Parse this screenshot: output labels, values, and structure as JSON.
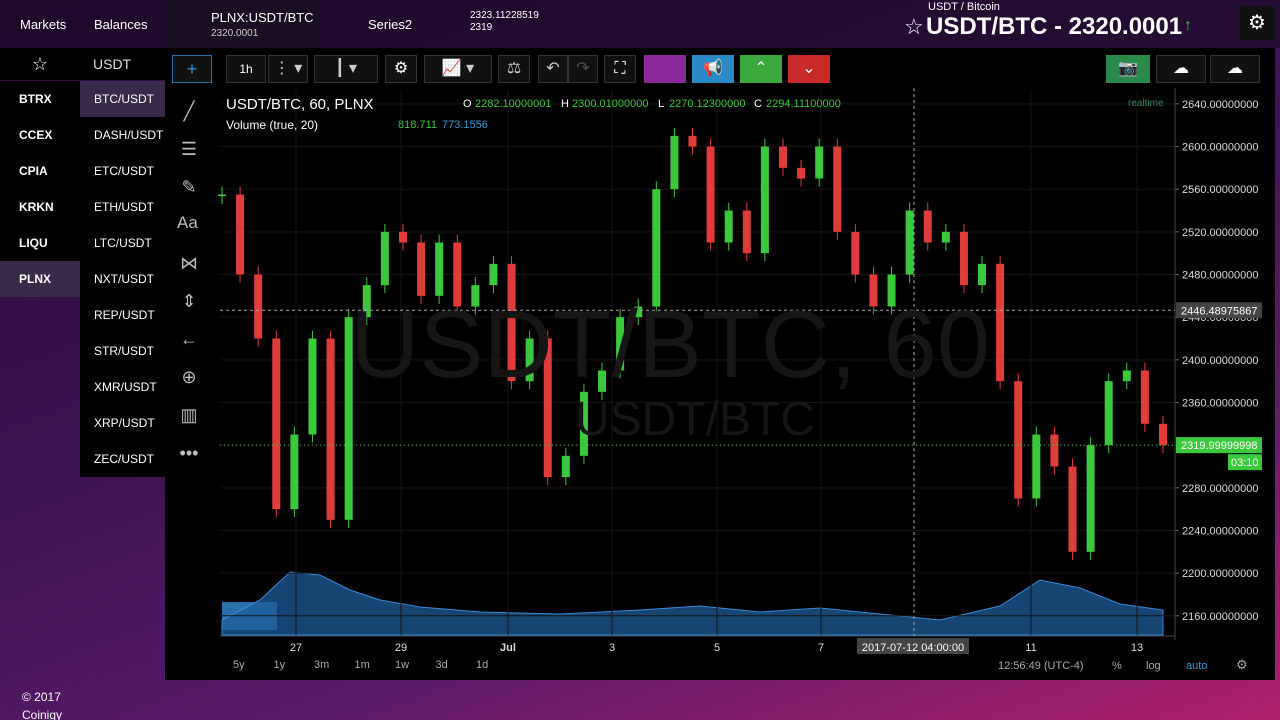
{
  "nav": {
    "markets": "Markets",
    "balances": "Balances",
    "tab_pair": "PLNX:USDT/BTC",
    "tab_price": "2320.0001",
    "series": "Series2",
    "mini_top": "2323.11228519",
    "mini_bottom": "2319",
    "pair_name": "USDT / Bitcoin",
    "headline": "USDT/BTC - 2320.0001"
  },
  "sidebar": {
    "filter": "USDT",
    "exchanges": [
      "BTRX",
      "CCEX",
      "CPIA",
      "KRKN",
      "LIQU",
      "PLNX"
    ],
    "markets": [
      "BTC/USDT",
      "DASH/USDT",
      "ETC/USDT",
      "ETH/USDT",
      "LTC/USDT",
      "NXT/USDT",
      "REP/USDT",
      "STR/USDT",
      "XMR/USDT",
      "XRP/USDT",
      "ZEC/USDT"
    ]
  },
  "toolbar": {
    "interval": "1h",
    "tools_text": "Aa"
  },
  "chart_header": {
    "symbol": "USDT/BTC, 60, PLNX",
    "o_label": "O",
    "o": "2282.10000001",
    "h_label": "H",
    "h": "2300.01000000",
    "l_label": "L",
    "l": "2270.12300000",
    "c_label": "C",
    "c": "2294.11100000",
    "volume": "Volume (true, 20)",
    "vol_a": "818.711",
    "vol_b": "773.1556",
    "realtime": "realtime",
    "watermark": "USDT/BTC, 60",
    "watermark_sub": "USDT/BTC"
  },
  "chart_data": {
    "type": "candle",
    "up_color": "#3cc83c",
    "down_color": "#e03c3c",
    "values": [
      2555,
      2480,
      2420,
      2260,
      2330,
      2420,
      2250,
      2440,
      2470,
      2520,
      2510,
      2460,
      2510,
      2450,
      2470,
      2490,
      2380,
      2420,
      2290,
      2310,
      2370,
      2390,
      2440,
      2450,
      2560,
      2610,
      2600,
      2510,
      2540,
      2500,
      2600,
      2580,
      2570,
      2600,
      2520,
      2480,
      2450,
      2480,
      2540,
      2510,
      2520,
      2470,
      2490,
      2380,
      2270,
      2330,
      2300,
      2220,
      2320,
      2380,
      2390,
      2340,
      2320
    ],
    "ylim": [
      2142,
      2653
    ],
    "yticks": [
      {
        "value": 2160,
        "label": "2160.00000000"
      },
      {
        "value": 2200,
        "label": "2200.00000000"
      },
      {
        "value": 2240,
        "label": "2240.00000000"
      },
      {
        "value": 2280,
        "label": "2280.00000000"
      },
      {
        "value": 2320,
        "label": "2320.00000000"
      },
      {
        "value": 2360,
        "label": "2360.00000000"
      },
      {
        "value": 2400,
        "label": "2400.00000000"
      },
      {
        "value": 2440,
        "label": "2440.00000000"
      },
      {
        "value": 2480,
        "label": "2480.00000000"
      },
      {
        "value": 2520,
        "label": "2520.00000000"
      },
      {
        "value": 2560,
        "label": "2560.00000000"
      },
      {
        "value": 2600,
        "label": "2600.00000000"
      },
      {
        "value": 2640,
        "label": "2640.00000000"
      }
    ],
    "x_labels": [
      "27",
      "29",
      "Jul",
      "3",
      "5",
      "7",
      "11",
      "13"
    ],
    "crosshair_price": 2446.48975867,
    "last_price": 2319.99999998,
    "countdown": "03:10",
    "crosshair_time": "2017-07-12 04:00:00"
  },
  "bottom": {
    "ranges": [
      "5y",
      "1y",
      "3m",
      "1m",
      "1w",
      "3d",
      "1d"
    ],
    "time": "12:56:49 (UTC-4)",
    "percent": "%",
    "log": "log",
    "auto": "auto"
  },
  "footer": {
    "line1": "© 2017",
    "line2": "Coinigy"
  }
}
